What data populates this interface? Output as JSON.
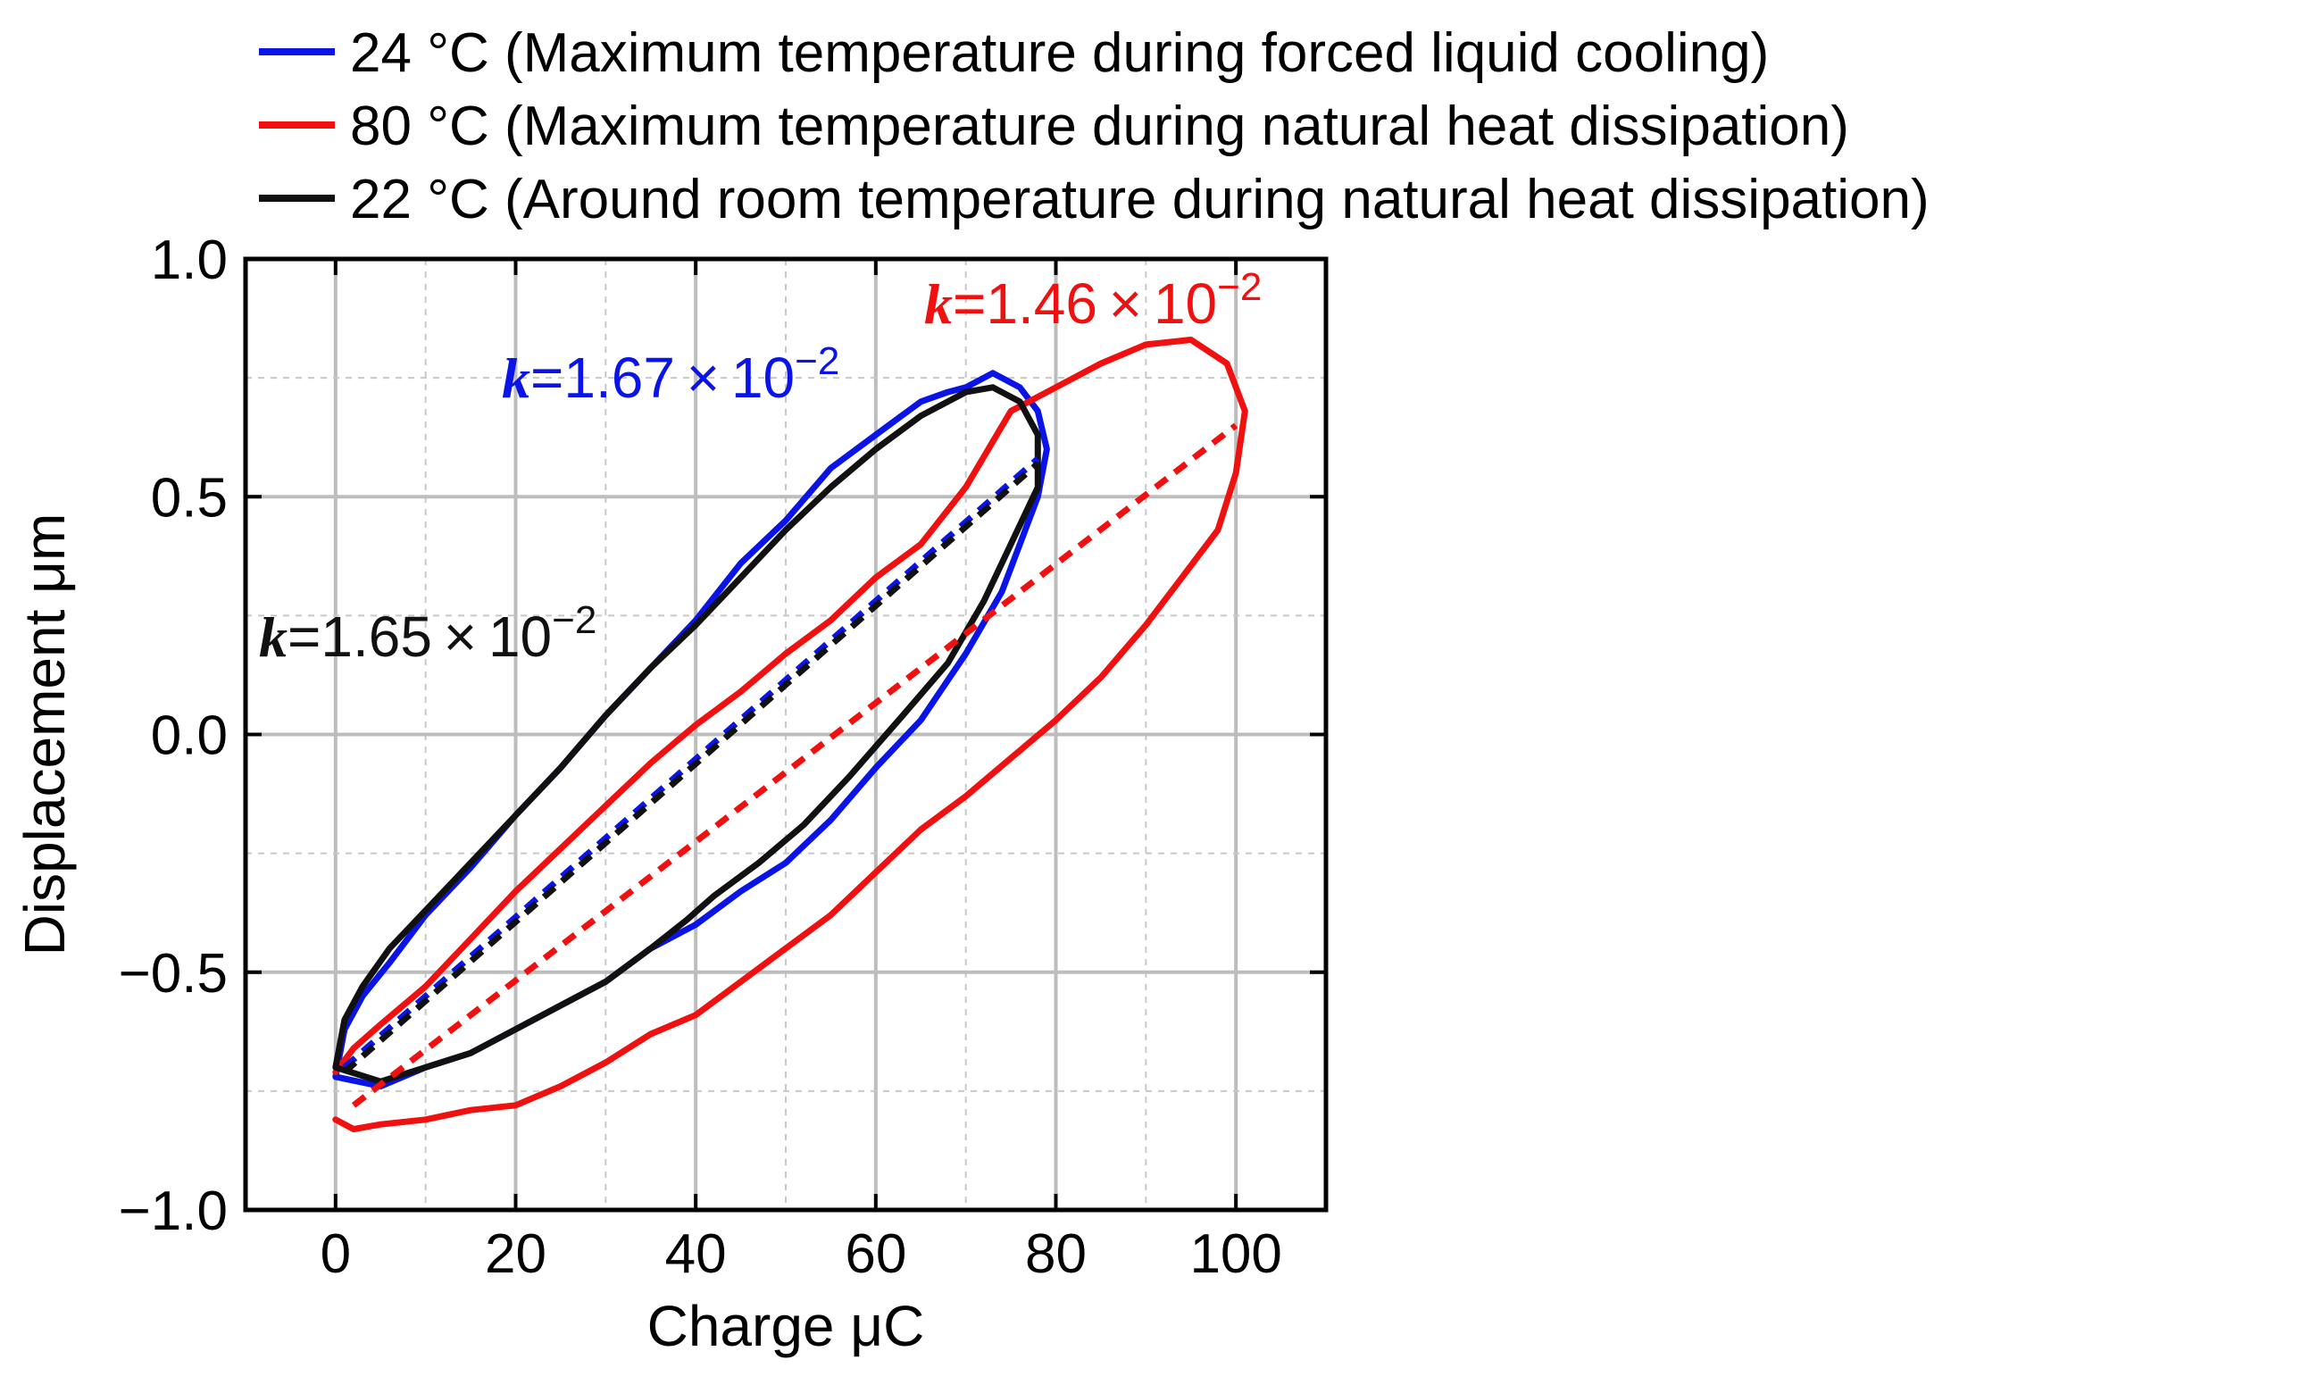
{
  "chart_data": {
    "type": "line",
    "title": "",
    "xlabel": "Charge μC",
    "ylabel": "Displacement μm",
    "xlim": [
      -10,
      110
    ],
    "ylim": [
      -1.0,
      1.0
    ],
    "xticks": [
      0,
      20,
      40,
      60,
      80,
      100
    ],
    "yticks": [
      -1.0,
      -0.5,
      0.0,
      0.5,
      1.0
    ],
    "xtick_labels": [
      "0",
      "20",
      "40",
      "60",
      "80",
      "100"
    ],
    "ytick_labels": [
      "−1.0",
      "−0.5",
      "0.0",
      "0.5",
      "1.0"
    ],
    "grid": true,
    "legend_position": "above-top",
    "series": [
      {
        "name": "24 °C (Maximum temperature during forced liquid cooling)",
        "color": "#0a14e6",
        "loop": [
          [
            0,
            -0.72
          ],
          [
            1,
            -0.62
          ],
          [
            3,
            -0.55
          ],
          [
            6,
            -0.48
          ],
          [
            10,
            -0.38
          ],
          [
            15,
            -0.28
          ],
          [
            20,
            -0.17
          ],
          [
            25,
            -0.07
          ],
          [
            30,
            0.04
          ],
          [
            35,
            0.14
          ],
          [
            40,
            0.24
          ],
          [
            45,
            0.36
          ],
          [
            50,
            0.45
          ],
          [
            55,
            0.56
          ],
          [
            60,
            0.63
          ],
          [
            65,
            0.7
          ],
          [
            68,
            0.72
          ],
          [
            70,
            0.73
          ],
          [
            73,
            0.76
          ],
          [
            76,
            0.73
          ],
          [
            78,
            0.68
          ],
          [
            79,
            0.6
          ],
          [
            78,
            0.5
          ],
          [
            76,
            0.4
          ],
          [
            74,
            0.3
          ],
          [
            70,
            0.17
          ],
          [
            65,
            0.03
          ],
          [
            60,
            -0.07
          ],
          [
            55,
            -0.18
          ],
          [
            50,
            -0.27
          ],
          [
            45,
            -0.33
          ],
          [
            40,
            -0.4
          ],
          [
            35,
            -0.45
          ],
          [
            30,
            -0.52
          ],
          [
            25,
            -0.57
          ],
          [
            20,
            -0.62
          ],
          [
            15,
            -0.67
          ],
          [
            10,
            -0.7
          ],
          [
            5,
            -0.74
          ],
          [
            0,
            -0.72
          ]
        ],
        "fit_k": 0.0167,
        "fit_line": [
          [
            1,
            -0.7
          ],
          [
            78,
            0.58
          ]
        ],
        "annotation": {
          "k_symbol": "k",
          "text": "=1.67 × 10",
          "exponent": "−2"
        }
      },
      {
        "name": "80 °C (Maximum temperature during natural heat dissipation)",
        "color": "#f01010",
        "loop": [
          [
            0,
            -0.71
          ],
          [
            2,
            -0.66
          ],
          [
            5,
            -0.61
          ],
          [
            10,
            -0.53
          ],
          [
            15,
            -0.43
          ],
          [
            20,
            -0.33
          ],
          [
            25,
            -0.24
          ],
          [
            30,
            -0.15
          ],
          [
            35,
            -0.06
          ],
          [
            40,
            0.02
          ],
          [
            45,
            0.09
          ],
          [
            50,
            0.17
          ],
          [
            55,
            0.24
          ],
          [
            60,
            0.33
          ],
          [
            65,
            0.4
          ],
          [
            70,
            0.52
          ],
          [
            75,
            0.68
          ],
          [
            80,
            0.73
          ],
          [
            85,
            0.78
          ],
          [
            90,
            0.82
          ],
          [
            95,
            0.83
          ],
          [
            99,
            0.78
          ],
          [
            101,
            0.68
          ],
          [
            100,
            0.55
          ],
          [
            98,
            0.43
          ],
          [
            94,
            0.33
          ],
          [
            90,
            0.23
          ],
          [
            85,
            0.12
          ],
          [
            80,
            0.03
          ],
          [
            75,
            -0.05
          ],
          [
            70,
            -0.13
          ],
          [
            65,
            -0.2
          ],
          [
            60,
            -0.29
          ],
          [
            55,
            -0.38
          ],
          [
            50,
            -0.45
          ],
          [
            45,
            -0.52
          ],
          [
            40,
            -0.59
          ],
          [
            35,
            -0.63
          ],
          [
            30,
            -0.69
          ],
          [
            25,
            -0.74
          ],
          [
            20,
            -0.78
          ],
          [
            15,
            -0.79
          ],
          [
            10,
            -0.81
          ],
          [
            5,
            -0.82
          ],
          [
            2,
            -0.83
          ],
          [
            0,
            -0.81
          ]
        ],
        "fit_k": 0.0146,
        "fit_line": [
          [
            2,
            -0.78
          ],
          [
            100,
            0.65
          ]
        ],
        "annotation": {
          "k_symbol": "k",
          "text": "=1.46 × 10",
          "exponent": "−2"
        }
      },
      {
        "name": "22 °C (Around room temperature during natural heat dissipation)",
        "color": "#111111",
        "loop": [
          [
            0,
            -0.7
          ],
          [
            1,
            -0.6
          ],
          [
            3,
            -0.53
          ],
          [
            6,
            -0.45
          ],
          [
            10,
            -0.37
          ],
          [
            15,
            -0.27
          ],
          [
            20,
            -0.17
          ],
          [
            25,
            -0.07
          ],
          [
            30,
            0.04
          ],
          [
            35,
            0.14
          ],
          [
            40,
            0.23
          ],
          [
            45,
            0.33
          ],
          [
            50,
            0.43
          ],
          [
            55,
            0.52
          ],
          [
            60,
            0.6
          ],
          [
            65,
            0.67
          ],
          [
            70,
            0.72
          ],
          [
            73,
            0.73
          ],
          [
            76,
            0.7
          ],
          [
            78,
            0.63
          ],
          [
            78,
            0.52
          ],
          [
            75,
            0.4
          ],
          [
            72,
            0.28
          ],
          [
            68,
            0.15
          ],
          [
            63,
            0.04
          ],
          [
            57,
            -0.09
          ],
          [
            52,
            -0.19
          ],
          [
            47,
            -0.27
          ],
          [
            42,
            -0.34
          ],
          [
            39,
            -0.39
          ],
          [
            35,
            -0.45
          ],
          [
            30,
            -0.52
          ],
          [
            25,
            -0.57
          ],
          [
            20,
            -0.62
          ],
          [
            15,
            -0.67
          ],
          [
            10,
            -0.7
          ],
          [
            5,
            -0.73
          ],
          [
            0,
            -0.7
          ]
        ],
        "fit_k": 0.0165,
        "fit_line": [
          [
            1,
            -0.71
          ],
          [
            78,
            0.57
          ]
        ],
        "annotation": {
          "k_symbol": "k",
          "text": "=1.65 × 10",
          "exponent": "−2"
        }
      }
    ]
  }
}
